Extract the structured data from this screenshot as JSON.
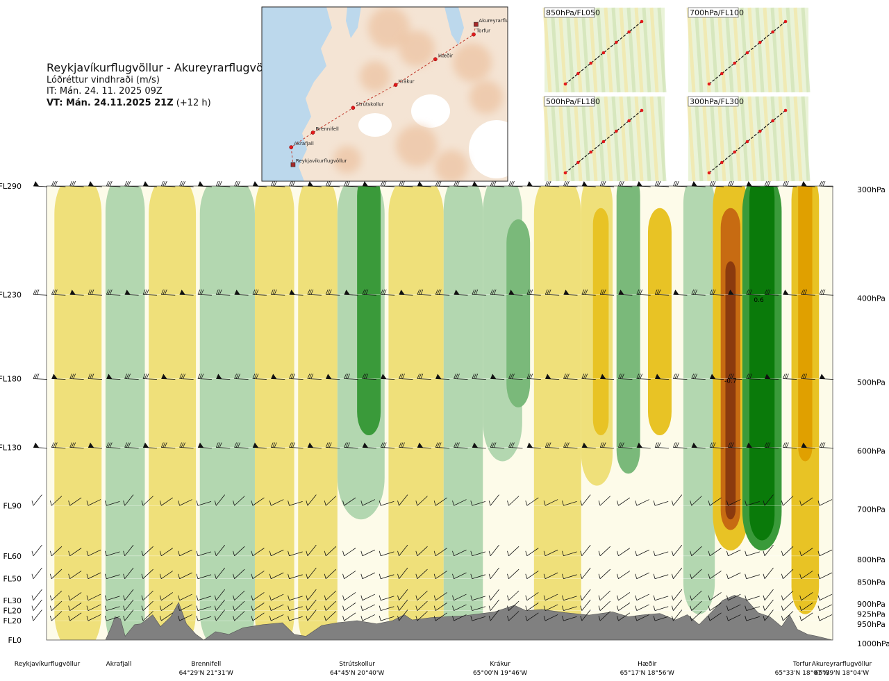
{
  "header": {
    "title": "Reykjavíkurflugvöllur - Akureyrarflugvöllur",
    "subtitle": "Lóðréttur vindhraði (m/s)",
    "it": "IT: Mán. 24. 11. 2025 09Z",
    "vt_bold": "VT: Mán. 24.11.2025 21Z",
    "vt_rest": " (+12 h)"
  },
  "map": {
    "places": [
      {
        "name": "Akureyrarflugvöllur",
        "lon": -18.07,
        "lat": 65.66,
        "type": "airport"
      },
      {
        "name": "Torfur",
        "lon": -18.12,
        "lat": 65.55,
        "type": "waypoint"
      },
      {
        "name": "Hæðir",
        "lon": -18.93,
        "lat": 65.28,
        "type": "waypoint"
      },
      {
        "name": "Krákur",
        "lon": -19.77,
        "lat": 65.0,
        "type": "waypoint"
      },
      {
        "name": "Strútskollur",
        "lon": -20.67,
        "lat": 64.75,
        "type": "waypoint"
      },
      {
        "name": "Brennifell",
        "lon": -21.52,
        "lat": 64.48,
        "type": "waypoint"
      },
      {
        "name": "Akrafjall",
        "lon": -21.98,
        "lat": 64.32,
        "type": "waypoint"
      },
      {
        "name": "Reykjavíkurflugvöllur",
        "lon": -21.94,
        "lat": 64.13,
        "type": "airport"
      }
    ]
  },
  "insets": [
    {
      "label": "850hPa/FL050"
    },
    {
      "label": "700hPa/FL100"
    },
    {
      "label": "500hPa/FL180"
    },
    {
      "label": "300hPa/FL300"
    }
  ],
  "chart_data": {
    "type": "heatmap",
    "title": "Lóðréttur vindhraði (m/s)",
    "xlabel": "",
    "ylabel": "",
    "flight_levels": [
      "FL290",
      "FL230",
      "FL180",
      "FL130",
      "FL90",
      "FL60",
      "FL50",
      "FL30",
      "FL20",
      "FL20",
      "FL0"
    ],
    "pressure_levels": [
      "300hPa",
      "400hPa",
      "500hPa",
      "600hPa",
      "700hPa",
      "800hPa",
      "850hPa",
      "900hPa",
      "925hPa",
      "950hPa",
      "1000hPa"
    ],
    "pressure_hpa": [
      300,
      400,
      500,
      600,
      700,
      800,
      850,
      900,
      925,
      950,
      1000
    ],
    "route_points": [
      {
        "name": "Reykjavíkurflugvöllur",
        "coord": "",
        "frac": 0.0
      },
      {
        "name": "Akrafjall",
        "coord": "",
        "frac": 0.09
      },
      {
        "name": "Brennifell",
        "coord": "64°29'N 21°31'W",
        "frac": 0.2
      },
      {
        "name": "Strútskollur",
        "coord": "64°45'N 20°40'W",
        "frac": 0.39
      },
      {
        "name": "Krákur",
        "coord": "65°00'N 19°46'W",
        "frac": 0.57
      },
      {
        "name": "Hæðir",
        "coord": "65°17'N 18°56'W",
        "frac": 0.755
      },
      {
        "name": "Torfur",
        "coord": "65°33'N 18°07'W",
        "frac": 0.95
      },
      {
        "name": "Akureyrarflugvöllur",
        "coord": "65°39'N 18°04'W",
        "frac": 1.0
      }
    ],
    "annotations": [
      {
        "text": "0.6",
        "frac": 0.906,
        "p": 405
      },
      {
        "text": "-0.7",
        "frac": 0.87,
        "p": 502
      }
    ],
    "bands": [
      {
        "frac": 0.0,
        "pTop": 300,
        "pBot": 1000,
        "w": 0.06,
        "v": 0.0
      },
      {
        "frac": 0.04,
        "pTop": 300,
        "pBot": 1000,
        "w": 0.06,
        "v": 0.15
      },
      {
        "frac": 0.1,
        "pTop": 300,
        "pBot": 1000,
        "w": 0.05,
        "v": -0.12
      },
      {
        "frac": 0.16,
        "pTop": 300,
        "pBot": 1000,
        "w": 0.06,
        "v": 0.15
      },
      {
        "frac": 0.23,
        "pTop": 300,
        "pBot": 1000,
        "w": 0.07,
        "v": -0.15
      },
      {
        "frac": 0.29,
        "pTop": 300,
        "pBot": 1000,
        "w": 0.05,
        "v": 0.15
      },
      {
        "frac": 0.345,
        "pTop": 300,
        "pBot": 1000,
        "w": 0.05,
        "v": 0.12
      },
      {
        "frac": 0.4,
        "pTop": 300,
        "pBot": 700,
        "w": 0.06,
        "v": -0.2
      },
      {
        "frac": 0.41,
        "pTop": 300,
        "pBot": 560,
        "w": 0.03,
        "v": -0.4
      },
      {
        "frac": 0.47,
        "pTop": 300,
        "pBot": 1000,
        "w": 0.07,
        "v": 0.12
      },
      {
        "frac": 0.53,
        "pTop": 300,
        "pBot": 1000,
        "w": 0.05,
        "v": -0.1
      },
      {
        "frac": 0.58,
        "pTop": 300,
        "pBot": 600,
        "w": 0.05,
        "v": -0.2
      },
      {
        "frac": 0.6,
        "pTop": 340,
        "pBot": 520,
        "w": 0.03,
        "v": -0.35
      },
      {
        "frac": 0.65,
        "pTop": 300,
        "pBot": 1000,
        "w": 0.06,
        "v": 0.12
      },
      {
        "frac": 0.7,
        "pTop": 300,
        "pBot": 640,
        "w": 0.04,
        "v": 0.25
      },
      {
        "frac": 0.705,
        "pTop": 330,
        "pBot": 560,
        "w": 0.02,
        "v": 0.4
      },
      {
        "frac": 0.74,
        "pTop": 300,
        "pBot": 620,
        "w": 0.03,
        "v": -0.3
      },
      {
        "frac": 0.78,
        "pTop": 330,
        "pBot": 560,
        "w": 0.03,
        "v": 0.3
      },
      {
        "frac": 0.83,
        "pTop": 300,
        "pBot": 900,
        "w": 0.04,
        "v": -0.15
      },
      {
        "frac": 0.87,
        "pTop": 300,
        "pBot": 760,
        "w": 0.045,
        "v": 0.4
      },
      {
        "frac": 0.87,
        "pTop": 330,
        "pBot": 720,
        "w": 0.025,
        "v": 0.6
      },
      {
        "frac": 0.87,
        "pTop": 380,
        "pBot": 700,
        "w": 0.013,
        "v": 0.75
      },
      {
        "frac": 0.91,
        "pTop": 300,
        "pBot": 760,
        "w": 0.05,
        "v": -0.4
      },
      {
        "frac": 0.91,
        "pTop": 300,
        "pBot": 740,
        "w": 0.032,
        "v": -0.6
      },
      {
        "frac": 0.91,
        "pTop": 340,
        "pBot": 700,
        "w": 0.016,
        "v": -0.75
      },
      {
        "frac": 0.965,
        "pTop": 300,
        "pBot": 900,
        "w": 0.035,
        "v": 0.4
      },
      {
        "frac": 0.965,
        "pTop": 300,
        "pBot": 600,
        "w": 0.018,
        "v": 0.55
      }
    ],
    "terrain": [
      [
        0.0,
        1000
      ],
      [
        0.075,
        1000
      ],
      [
        0.082,
        968
      ],
      [
        0.087,
        940
      ],
      [
        0.094,
        945
      ],
      [
        0.1,
        990
      ],
      [
        0.112,
        960
      ],
      [
        0.12,
        958
      ],
      [
        0.135,
        935
      ],
      [
        0.145,
        965
      ],
      [
        0.158,
        940
      ],
      [
        0.168,
        905
      ],
      [
        0.178,
        958
      ],
      [
        0.19,
        985
      ],
      [
        0.2,
        1000
      ],
      [
        0.215,
        978
      ],
      [
        0.232,
        985
      ],
      [
        0.25,
        968
      ],
      [
        0.275,
        960
      ],
      [
        0.3,
        955
      ],
      [
        0.315,
        985
      ],
      [
        0.33,
        990
      ],
      [
        0.35,
        962
      ],
      [
        0.37,
        955
      ],
      [
        0.395,
        950
      ],
      [
        0.42,
        958
      ],
      [
        0.44,
        950
      ],
      [
        0.455,
        935
      ],
      [
        0.465,
        948
      ],
      [
        0.49,
        942
      ],
      [
        0.53,
        938
      ],
      [
        0.57,
        928
      ],
      [
        0.595,
        912
      ],
      [
        0.61,
        925
      ],
      [
        0.63,
        922
      ],
      [
        0.66,
        930
      ],
      [
        0.69,
        936
      ],
      [
        0.72,
        928
      ],
      [
        0.74,
        940
      ],
      [
        0.76,
        935
      ],
      [
        0.78,
        932
      ],
      [
        0.8,
        948
      ],
      [
        0.815,
        935
      ],
      [
        0.83,
        960
      ],
      [
        0.845,
        930
      ],
      [
        0.86,
        900
      ],
      [
        0.875,
        888
      ],
      [
        0.89,
        898
      ],
      [
        0.905,
        930
      ],
      [
        0.92,
        940
      ],
      [
        0.935,
        965
      ],
      [
        0.945,
        935
      ],
      [
        0.955,
        972
      ],
      [
        0.968,
        985
      ],
      [
        0.98,
        990
      ],
      [
        1.0,
        1000
      ]
    ],
    "barb_columns": 44,
    "colorscale": [
      {
        "max": -0.6,
        "color": "#0a7a0a"
      },
      {
        "max": -0.4,
        "color": "#3a9a3a"
      },
      {
        "max": -0.25,
        "color": "#7ab97a"
      },
      {
        "max": -0.1,
        "color": "#b3d7b0"
      },
      {
        "max": -0.03,
        "color": "#d4ecd0"
      },
      {
        "max": 0.03,
        "color": "#fdfbe9"
      },
      {
        "max": 0.1,
        "color": "#f9f0b0"
      },
      {
        "max": 0.25,
        "color": "#efe07a"
      },
      {
        "max": 0.4,
        "color": "#e8c325"
      },
      {
        "max": 0.55,
        "color": "#e0a000"
      },
      {
        "max": 0.7,
        "color": "#c76b12"
      },
      {
        "max": 9,
        "color": "#8b3a0e"
      }
    ]
  }
}
